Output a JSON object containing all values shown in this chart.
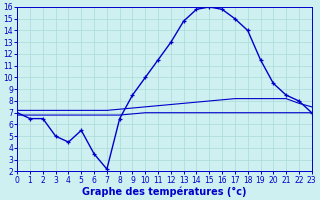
{
  "title": "Graphe des températures (°c)",
  "line1": {
    "x": [
      0,
      1,
      2,
      3,
      4,
      5,
      6,
      7,
      8,
      9,
      10,
      11,
      12,
      13,
      14,
      15,
      16,
      17,
      18,
      19,
      20,
      21,
      22,
      23
    ],
    "y": [
      7.0,
      6.5,
      6.5,
      5.0,
      4.5,
      5.5,
      3.5,
      2.2,
      6.5,
      8.5,
      10.0,
      11.5,
      13.0,
      14.8,
      15.8,
      16.0,
      15.8,
      15.0,
      14.0,
      11.5,
      9.5,
      8.5,
      8.0,
      7.0
    ],
    "color": "#0000cc",
    "linewidth": 1.0
  },
  "line2": {
    "x": [
      0,
      1,
      2,
      3,
      4,
      5,
      6,
      7,
      8,
      9,
      10,
      11,
      12,
      13,
      14,
      15,
      16,
      17,
      18,
      19,
      20,
      21,
      22,
      23
    ],
    "y": [
      7.2,
      7.2,
      7.2,
      7.2,
      7.2,
      7.2,
      7.2,
      7.2,
      7.3,
      7.4,
      7.5,
      7.6,
      7.7,
      7.8,
      7.9,
      8.0,
      8.1,
      8.2,
      8.2,
      8.2,
      8.2,
      8.2,
      7.8,
      7.5
    ],
    "color": "#0000cc",
    "linewidth": 0.8
  },
  "line3": {
    "x": [
      0,
      1,
      2,
      3,
      4,
      5,
      6,
      7,
      8,
      9,
      10,
      11,
      12,
      13,
      14,
      15,
      16,
      17,
      18,
      19,
      20,
      21,
      22,
      23
    ],
    "y": [
      6.8,
      6.8,
      6.8,
      6.8,
      6.8,
      6.8,
      6.8,
      6.8,
      6.8,
      6.9,
      7.0,
      7.0,
      7.0,
      7.0,
      7.0,
      7.0,
      7.0,
      7.0,
      7.0,
      7.0,
      7.0,
      7.0,
      7.0,
      7.0
    ],
    "color": "#0000cc",
    "linewidth": 0.8
  },
  "background_color": "#cff0f0",
  "grid_color": "#aadada",
  "axis_color": "#0000cc",
  "xlim": [
    0,
    23
  ],
  "ylim": [
    2,
    16
  ],
  "yticks": [
    2,
    3,
    4,
    5,
    6,
    7,
    8,
    9,
    10,
    11,
    12,
    13,
    14,
    15,
    16
  ],
  "xticks": [
    0,
    1,
    2,
    3,
    4,
    5,
    6,
    7,
    8,
    9,
    10,
    11,
    12,
    13,
    14,
    15,
    16,
    17,
    18,
    19,
    20,
    21,
    22,
    23
  ],
  "xlabel_fontsize": 7.0,
  "tick_fontsize": 5.5
}
